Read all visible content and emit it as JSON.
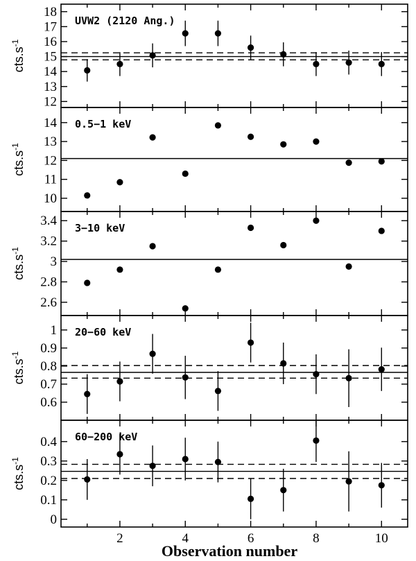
{
  "chart_data": {
    "type": "scatter",
    "xlabel": "Observation number",
    "xlim": [
      0.2,
      10.8
    ],
    "xticks": [
      2,
      4,
      6,
      8,
      10
    ],
    "panels": [
      {
        "label": "UVW2 (2120 Ang.)",
        "ylabel": "cts.s",
        "ylabel_exp": "-1",
        "ylim": [
          11.6,
          18.5
        ],
        "yticks": [
          12,
          13,
          14,
          15,
          16,
          17,
          18
        ],
        "x": [
          1,
          2,
          3,
          4,
          5,
          6,
          7,
          8,
          9,
          10
        ],
        "y": [
          14.08,
          14.5,
          15.08,
          16.55,
          16.55,
          15.6,
          15.15,
          14.5,
          14.6,
          14.5
        ],
        "yerr": [
          0.75,
          0.8,
          0.8,
          0.85,
          0.85,
          0.8,
          0.8,
          0.8,
          0.8,
          0.8
        ],
        "hline": 15.0,
        "hband": [
          14.78,
          15.25
        ]
      },
      {
        "label": "0.5−1 keV",
        "ylabel": "cts.s",
        "ylabel_exp": "-1",
        "ylim": [
          9.3,
          14.8
        ],
        "yticks": [
          10,
          11,
          12,
          13,
          14
        ],
        "x": [
          1,
          2,
          3,
          4,
          5,
          6,
          7,
          8,
          9,
          10
        ],
        "y": [
          10.15,
          10.85,
          13.22,
          11.3,
          13.85,
          13.25,
          12.85,
          13.0,
          11.88,
          11.95
        ],
        "hline": 12.1
      },
      {
        "label": "3−10 keV",
        "ylabel": "cts.s",
        "ylabel_exp": "-1",
        "ylim": [
          2.47,
          3.49
        ],
        "yticks": [
          2.6,
          2.8,
          3,
          3.2,
          3.4
        ],
        "ytick_labels": [
          "2.6",
          "2.8",
          "3",
          "3.2",
          "3.4"
        ],
        "x": [
          1,
          2,
          3,
          4,
          5,
          6,
          7,
          8,
          9,
          10
        ],
        "y": [
          2.79,
          2.92,
          3.15,
          2.54,
          2.92,
          3.33,
          3.16,
          3.4,
          2.95,
          3.3
        ],
        "hline": 3.02
      },
      {
        "label": "20−60 keV",
        "ylabel": "cts.s",
        "ylabel_exp": "-1",
        "ylim": [
          0.5,
          1.08
        ],
        "yticks": [
          0.6,
          0.7,
          0.8,
          0.9,
          1.0
        ],
        "ytick_labels": [
          "0.6",
          "0.7",
          "0.8",
          "0.9",
          "1"
        ],
        "x": [
          1,
          2,
          3,
          4,
          5,
          6,
          7,
          8,
          9,
          10
        ],
        "y": [
          0.645,
          0.715,
          0.868,
          0.737,
          0.662,
          0.93,
          0.815,
          0.755,
          0.733,
          0.782
        ],
        "yerr": [
          0.11,
          0.11,
          0.11,
          0.12,
          0.11,
          0.11,
          0.115,
          0.11,
          0.16,
          0.12
        ],
        "hline": 0.765,
        "hband": [
          0.733,
          0.803
        ]
      },
      {
        "label": "60−200 keV",
        "ylabel": "cts.s",
        "ylabel_exp": "-1",
        "ylim": [
          -0.04,
          0.51
        ],
        "yticks": [
          0,
          0.1,
          0.2,
          0.3,
          0.4
        ],
        "ytick_labels": [
          "0",
          "0.1",
          "0.2",
          "0.3",
          "0.4"
        ],
        "x": [
          1,
          2,
          3,
          4,
          5,
          6,
          7,
          8,
          9,
          10
        ],
        "y": [
          0.205,
          0.335,
          0.275,
          0.31,
          0.295,
          0.105,
          0.15,
          0.405,
          0.195,
          0.175
        ],
        "yerr": [
          0.105,
          0.105,
          0.105,
          0.11,
          0.105,
          0.105,
          0.11,
          0.11,
          0.155,
          0.115
        ],
        "hline": 0.247,
        "hband": [
          0.21,
          0.283
        ]
      }
    ]
  }
}
